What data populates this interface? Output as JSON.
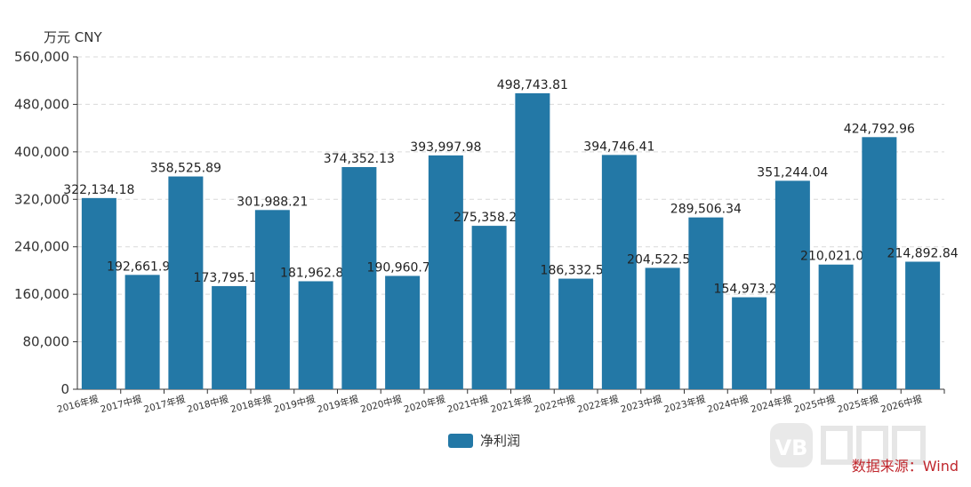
{
  "unit_label": "万元  CNY",
  "source_text": "数据来源：Wind",
  "colors": {
    "bar": "#2378a6",
    "source": "#c0272d",
    "grid": "#d9d9d9",
    "axis": "#333333"
  },
  "chart_data": {
    "type": "bar",
    "categories": [
      "2016年报",
      "2017中报",
      "2017年报",
      "2018中报",
      "2018年报",
      "2019中报",
      "2019年报",
      "2020中报",
      "2020年报",
      "2021中报",
      "2021年报",
      "2022中报",
      "2022年报",
      "2023中报",
      "2023年报",
      "2024中报",
      "2024年报",
      "2025中报",
      "2025年报",
      "2026中报"
    ],
    "series": [
      {
        "name": "净利润",
        "values": [
          322134.18,
          192661.9,
          358525.89,
          173795.18,
          301988.21,
          181962.89,
          374352.13,
          190960.74,
          393997.98,
          275358.2,
          498743.81,
          186332.5,
          394746.41,
          204522.53,
          289506.34,
          154973.2,
          351244.04,
          210021.06,
          424792.96,
          214892.84
        ],
        "labels": [
          "322,134.18",
          "192,661.90",
          "358,525.89",
          "173,795.18",
          "301,988.21",
          "181,962.89",
          "374,352.13",
          "190,960.74",
          "393,997.98",
          "275,358.20",
          "498,743.81",
          "186,332.50",
          "394,746.41",
          "204,522.53",
          "289,506.34",
          "154,973.20",
          "351,244.04",
          "210,021.06",
          "424,792.96",
          "214,892.84"
        ]
      }
    ],
    "ylim": [
      0,
      560000
    ],
    "yticks": [
      0,
      80000,
      160000,
      240000,
      320000,
      400000,
      480000,
      560000
    ],
    "ytick_labels": [
      "0",
      "80,000",
      "160,000",
      "240,000",
      "320,000",
      "400,000",
      "480,000",
      "560,000"
    ],
    "grid": true,
    "legend": "bottom-center"
  }
}
